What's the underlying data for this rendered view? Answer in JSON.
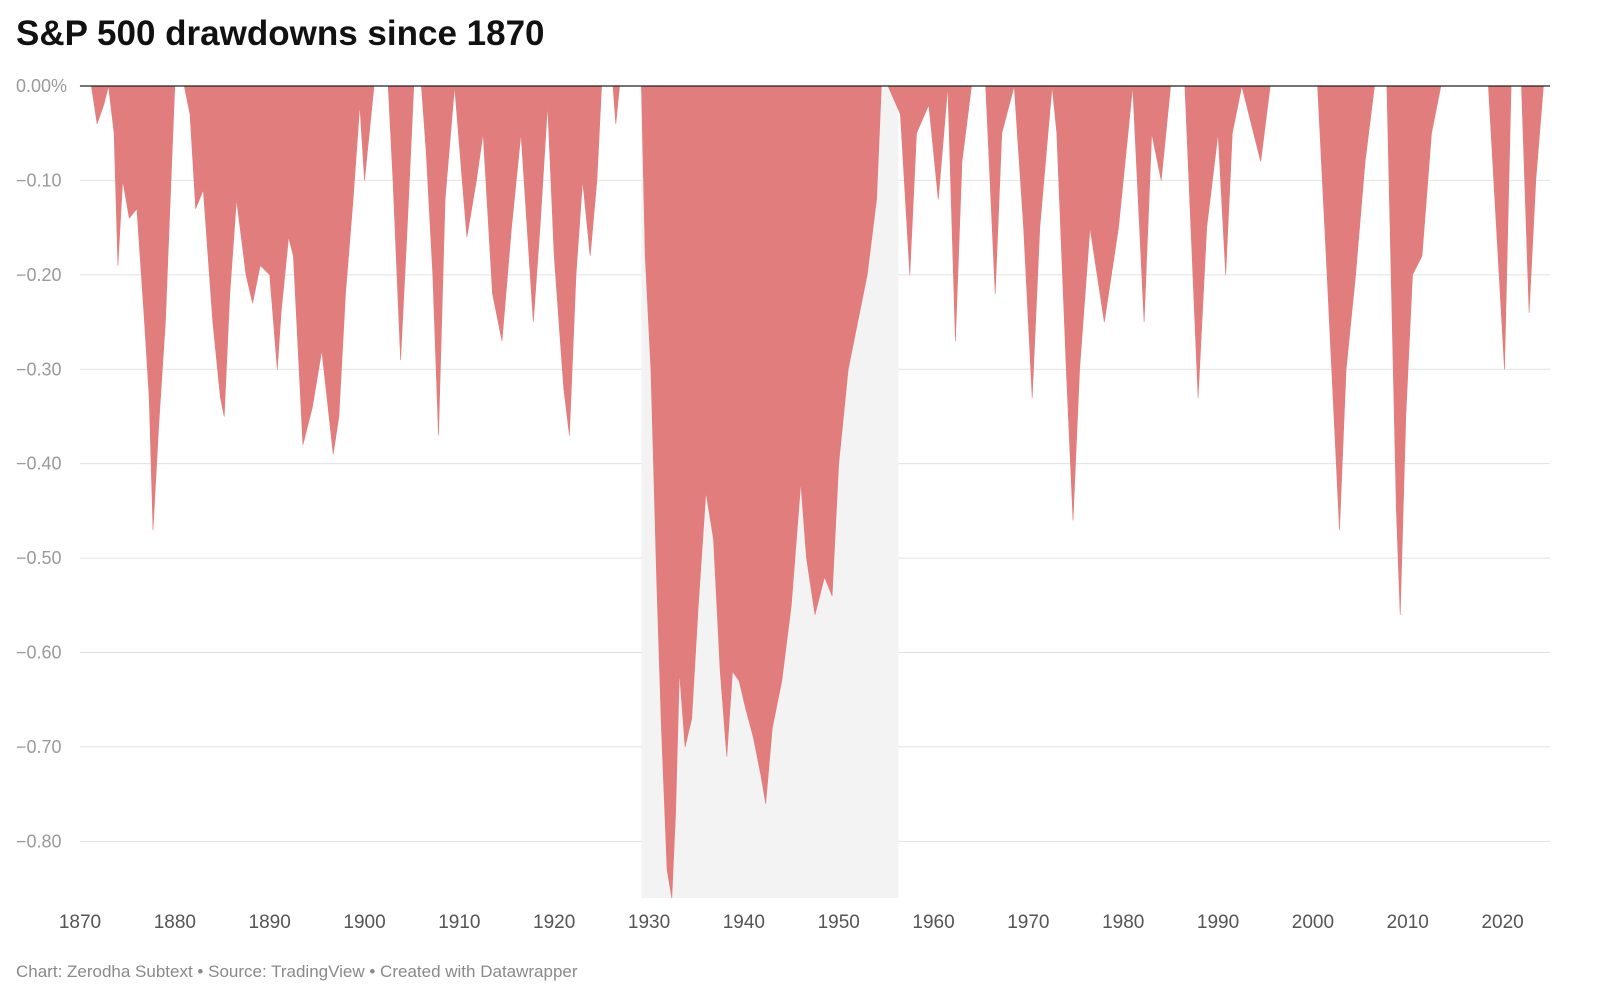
{
  "title": "S&P 500 drawdowns since 1870",
  "footer": "Chart: Zerodha Subtext • Source: TradingView • Created with Datawrapper",
  "colors": {
    "area": "#e27d7d",
    "highlight_band": "#f3f3f3",
    "gridline": "#e2e2e2",
    "zero_line": "#222222"
  },
  "chart_data": {
    "type": "area",
    "title": "S&P 500 drawdowns since 1870",
    "xlabel": "",
    "ylabel": "",
    "xlim": [
      1870,
      2025
    ],
    "ylim": [
      -0.86,
      0
    ],
    "grid": true,
    "y_ticks": [
      {
        "value": 0,
        "label": "0.00%"
      },
      {
        "value": -0.1,
        "label": "−0.10"
      },
      {
        "value": -0.2,
        "label": "−0.20"
      },
      {
        "value": -0.3,
        "label": "−0.30"
      },
      {
        "value": -0.4,
        "label": "−0.40"
      },
      {
        "value": -0.5,
        "label": "−0.50"
      },
      {
        "value": -0.6,
        "label": "−0.60"
      },
      {
        "value": -0.7,
        "label": "−0.70"
      },
      {
        "value": -0.8,
        "label": "−0.80"
      }
    ],
    "x_ticks": [
      {
        "value": 1870,
        "label": "1870"
      },
      {
        "value": 1880,
        "label": "1880"
      },
      {
        "value": 1890,
        "label": "1890"
      },
      {
        "value": 1900,
        "label": "1900"
      },
      {
        "value": 1910,
        "label": "1910"
      },
      {
        "value": 1920,
        "label": "1920"
      },
      {
        "value": 1930,
        "label": "1930"
      },
      {
        "value": 1940,
        "label": "1940"
      },
      {
        "value": 1950,
        "label": "1950"
      },
      {
        "value": 1960,
        "label": "1960"
      },
      {
        "value": 1970,
        "label": "1970"
      },
      {
        "value": 1980,
        "label": "1980"
      },
      {
        "value": 1990,
        "label": "1990"
      },
      {
        "value": 2000,
        "label": "2000"
      },
      {
        "value": 2010,
        "label": "2010"
      },
      {
        "value": 2020,
        "label": "2020"
      }
    ],
    "highlight_range": [
      1929.2,
      1956.3
    ],
    "series": [
      {
        "values": [
          [
            1870,
            0
          ],
          [
            1871.2,
            0
          ],
          [
            1871.8,
            -0.04
          ],
          [
            1872.5,
            -0.02
          ],
          [
            1873.0,
            0
          ],
          [
            1873.6,
            -0.05
          ],
          [
            1874.0,
            -0.19
          ],
          [
            1874.5,
            -0.1
          ],
          [
            1875.2,
            -0.14
          ],
          [
            1876.0,
            -0.13
          ],
          [
            1876.8,
            -0.25
          ],
          [
            1877.3,
            -0.33
          ],
          [
            1877.7,
            -0.47
          ],
          [
            1878.3,
            -0.36
          ],
          [
            1879.0,
            -0.25
          ],
          [
            1879.6,
            -0.1
          ],
          [
            1880.0,
            0
          ],
          [
            1880.6,
            0
          ],
          [
            1881.0,
            0
          ],
          [
            1881.6,
            -0.03
          ],
          [
            1882.2,
            -0.13
          ],
          [
            1883.0,
            -0.11
          ],
          [
            1884.0,
            -0.25
          ],
          [
            1884.8,
            -0.33
          ],
          [
            1885.2,
            -0.35
          ],
          [
            1885.8,
            -0.22
          ],
          [
            1886.5,
            -0.12
          ],
          [
            1887.5,
            -0.2
          ],
          [
            1888.2,
            -0.23
          ],
          [
            1889.0,
            -0.19
          ],
          [
            1890.0,
            -0.2
          ],
          [
            1890.8,
            -0.3
          ],
          [
            1891.2,
            -0.24
          ],
          [
            1892.0,
            -0.16
          ],
          [
            1892.5,
            -0.18
          ],
          [
            1893.5,
            -0.38
          ],
          [
            1894.5,
            -0.34
          ],
          [
            1895.5,
            -0.28
          ],
          [
            1896.7,
            -0.39
          ],
          [
            1897.3,
            -0.35
          ],
          [
            1898.0,
            -0.22
          ],
          [
            1898.8,
            -0.12
          ],
          [
            1899.5,
            -0.02
          ],
          [
            1900.0,
            -0.1
          ],
          [
            1901.0,
            0
          ],
          [
            1901.8,
            0
          ],
          [
            1902.5,
            0
          ],
          [
            1903.0,
            -0.1
          ],
          [
            1903.8,
            -0.29
          ],
          [
            1904.5,
            -0.15
          ],
          [
            1905.2,
            0
          ],
          [
            1906.0,
            0
          ],
          [
            1906.5,
            -0.07
          ],
          [
            1907.2,
            -0.2
          ],
          [
            1907.8,
            -0.37
          ],
          [
            1908.5,
            -0.12
          ],
          [
            1909.5,
            0
          ],
          [
            1910.3,
            -0.1
          ],
          [
            1910.8,
            -0.16
          ],
          [
            1911.8,
            -0.1
          ],
          [
            1912.5,
            -0.05
          ],
          [
            1913.5,
            -0.22
          ],
          [
            1914.5,
            -0.27
          ],
          [
            1915.5,
            -0.15
          ],
          [
            1916.5,
            -0.05
          ],
          [
            1917.8,
            -0.25
          ],
          [
            1918.5,
            -0.15
          ],
          [
            1919.3,
            -0.02
          ],
          [
            1920.0,
            -0.18
          ],
          [
            1921.0,
            -0.32
          ],
          [
            1921.6,
            -0.37
          ],
          [
            1922.3,
            -0.2
          ],
          [
            1923.0,
            -0.1
          ],
          [
            1923.8,
            -0.18
          ],
          [
            1924.5,
            -0.1
          ],
          [
            1925.0,
            0
          ],
          [
            1926.2,
            0
          ],
          [
            1926.5,
            -0.04
          ],
          [
            1926.9,
            0
          ],
          [
            1928.0,
            0
          ],
          [
            1929.2,
            0
          ],
          [
            1929.6,
            -0.18
          ],
          [
            1930.2,
            -0.3
          ],
          [
            1930.8,
            -0.52
          ],
          [
            1931.3,
            -0.68
          ],
          [
            1931.9,
            -0.83
          ],
          [
            1932.4,
            -0.86
          ],
          [
            1932.8,
            -0.77
          ],
          [
            1933.2,
            -0.62
          ],
          [
            1933.8,
            -0.7
          ],
          [
            1934.5,
            -0.67
          ],
          [
            1935.2,
            -0.55
          ],
          [
            1936.0,
            -0.43
          ],
          [
            1936.8,
            -0.48
          ],
          [
            1937.5,
            -0.62
          ],
          [
            1938.2,
            -0.71
          ],
          [
            1938.8,
            -0.62
          ],
          [
            1939.5,
            -0.63
          ],
          [
            1940.2,
            -0.66
          ],
          [
            1941.0,
            -0.69
          ],
          [
            1941.8,
            -0.73
          ],
          [
            1942.3,
            -0.76
          ],
          [
            1943.0,
            -0.68
          ],
          [
            1944.0,
            -0.63
          ],
          [
            1945.0,
            -0.55
          ],
          [
            1946.0,
            -0.42
          ],
          [
            1946.6,
            -0.5
          ],
          [
            1947.5,
            -0.56
          ],
          [
            1948.5,
            -0.52
          ],
          [
            1949.3,
            -0.54
          ],
          [
            1950.0,
            -0.4
          ],
          [
            1951.0,
            -0.3
          ],
          [
            1952.0,
            -0.25
          ],
          [
            1953.0,
            -0.2
          ],
          [
            1954.0,
            -0.12
          ],
          [
            1954.5,
            0
          ],
          [
            1955.2,
            0
          ],
          [
            1956.5,
            -0.03
          ],
          [
            1957.5,
            -0.2
          ],
          [
            1958.2,
            -0.05
          ],
          [
            1959.5,
            -0.02
          ],
          [
            1960.5,
            -0.12
          ],
          [
            1961.5,
            0
          ],
          [
            1962.3,
            -0.27
          ],
          [
            1963.0,
            -0.08
          ],
          [
            1964.0,
            0
          ],
          [
            1965.5,
            0
          ],
          [
            1966.5,
            -0.22
          ],
          [
            1967.2,
            -0.05
          ],
          [
            1968.5,
            0
          ],
          [
            1969.5,
            -0.15
          ],
          [
            1970.4,
            -0.33
          ],
          [
            1971.2,
            -0.15
          ],
          [
            1972.5,
            0
          ],
          [
            1973.0,
            -0.05
          ],
          [
            1974.0,
            -0.3
          ],
          [
            1974.7,
            -0.46
          ],
          [
            1975.4,
            -0.3
          ],
          [
            1976.5,
            -0.15
          ],
          [
            1978.0,
            -0.25
          ],
          [
            1979.5,
            -0.15
          ],
          [
            1980.5,
            -0.05
          ],
          [
            1981.0,
            0
          ],
          [
            1982.2,
            -0.25
          ],
          [
            1983.0,
            -0.05
          ],
          [
            1984.0,
            -0.1
          ],
          [
            1985.0,
            0
          ],
          [
            1986.5,
            0
          ],
          [
            1987.9,
            -0.33
          ],
          [
            1988.8,
            -0.15
          ],
          [
            1990.0,
            -0.05
          ],
          [
            1990.8,
            -0.2
          ],
          [
            1991.5,
            -0.05
          ],
          [
            1992.5,
            0
          ],
          [
            1994.5,
            -0.08
          ],
          [
            1995.5,
            0
          ],
          [
            1998.5,
            0
          ],
          [
            2000.5,
            0
          ],
          [
            2001.5,
            -0.2
          ],
          [
            2002.8,
            -0.47
          ],
          [
            2003.5,
            -0.3
          ],
          [
            2004.5,
            -0.2
          ],
          [
            2005.5,
            -0.08
          ],
          [
            2006.5,
            0
          ],
          [
            2007.8,
            0
          ],
          [
            2008.8,
            -0.45
          ],
          [
            2009.2,
            -0.56
          ],
          [
            2009.8,
            -0.35
          ],
          [
            2010.5,
            -0.2
          ],
          [
            2011.5,
            -0.18
          ],
          [
            2012.5,
            -0.05
          ],
          [
            2013.5,
            0
          ],
          [
            2015.5,
            0
          ],
          [
            2018.5,
            0
          ],
          [
            2020.2,
            -0.3
          ],
          [
            2020.9,
            0
          ],
          [
            2022.0,
            0
          ],
          [
            2022.8,
            -0.24
          ],
          [
            2023.5,
            -0.1
          ],
          [
            2024.3,
            0
          ],
          [
            2025.0,
            0
          ]
        ]
      }
    ]
  }
}
